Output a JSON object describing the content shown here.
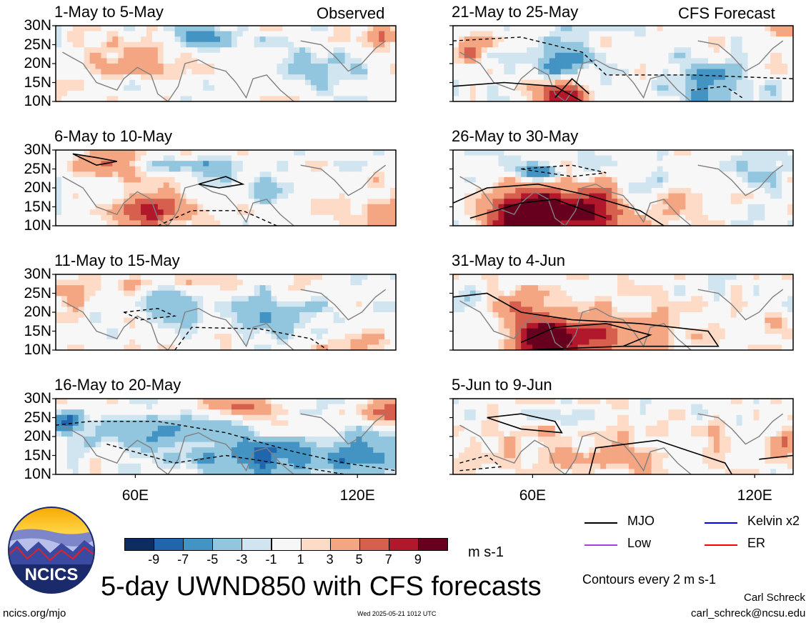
{
  "header": {
    "observed_label": "Observed",
    "forecast_label": "CFS Forecast"
  },
  "chart_data": {
    "type": "heatmap",
    "variable": "5-day UWND850",
    "lat_ticks": [
      "30N",
      "25N",
      "20N",
      "15N",
      "10N"
    ],
    "lon_ticks": [
      "60E",
      "120E"
    ],
    "lat_range": [
      10,
      30
    ],
    "lon_range": [
      40,
      130
    ],
    "panels": [
      {
        "title": "1-May to 5-May",
        "source": "observed"
      },
      {
        "title": "6-May to 10-May",
        "source": "observed"
      },
      {
        "title": "11-May to 15-May",
        "source": "observed"
      },
      {
        "title": "16-May to 20-May",
        "source": "observed"
      },
      {
        "title": "21-May to 25-May",
        "source": "forecast"
      },
      {
        "title": "26-May to 30-May",
        "source": "forecast"
      },
      {
        "title": "31-May to 4-Jun",
        "source": "forecast"
      },
      {
        "title": "5-Jun to 9-Jun",
        "source": "forecast"
      }
    ],
    "colorbar": {
      "ticks": [
        "-9",
        "-7",
        "-5",
        "-3",
        "-1",
        "1",
        "3",
        "5",
        "7",
        "9"
      ],
      "colors": [
        "#0b2d5f",
        "#2166ac",
        "#4393c3",
        "#92c5de",
        "#d1e5f0",
        "#f7f7f7",
        "#fddbc7",
        "#f4a582",
        "#d6604d",
        "#b2182b",
        "#67001f"
      ],
      "units": "m s-1"
    },
    "legend": [
      {
        "label": "MJO",
        "color": "#000000"
      },
      {
        "label": "Kelvin x2",
        "color": "#0000ff"
      },
      {
        "label": "Low",
        "color": "#a040e0"
      },
      {
        "label": "ER",
        "color": "#ff0000"
      }
    ],
    "contour_note": "Contours every 2 m s-1"
  },
  "footer": {
    "main_title": "5-day UWND850 with CFS forecasts",
    "url": "ncics.org/mjo",
    "timestamp": "Wed 2025-05-21 1012 UTC",
    "author": "Carl Schreck",
    "email": "carl_schreck@ncsu.edu",
    "logo_text": "NCICS"
  }
}
